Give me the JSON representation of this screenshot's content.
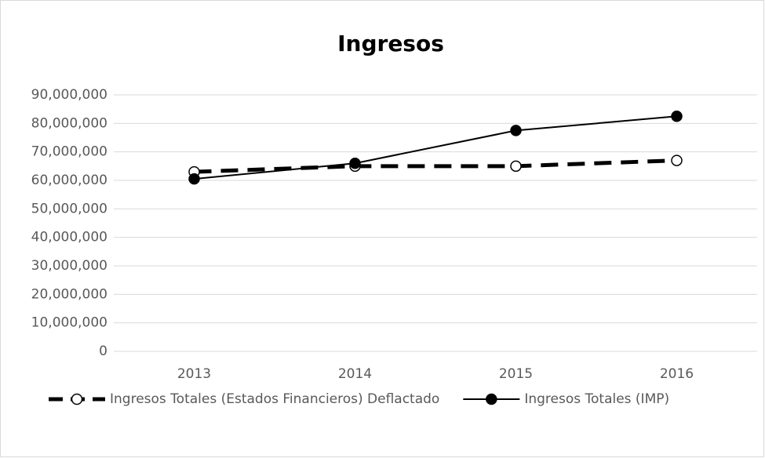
{
  "chart_data": {
    "type": "line",
    "title": "Ingresos",
    "categories": [
      "2013",
      "2014",
      "2015",
      "2016"
    ],
    "series": [
      {
        "name": "Ingresos Totales (Estados Financieros) Deflactado",
        "color": "#000000",
        "line_style": "dashed",
        "marker": "open",
        "values": [
          63000000,
          65000000,
          65000000,
          67000000
        ]
      },
      {
        "name": "Ingresos Totales (IMP)",
        "color": "#000000",
        "line_style": "solid",
        "marker": "filled",
        "values": [
          60500000,
          66000000,
          77500000,
          82500000
        ]
      }
    ],
    "ylim": [
      0,
      90000000
    ],
    "yticks": [
      0,
      {
        "value": 10000000,
        "label": "10,000,000"
      },
      {
        "value": 20000000,
        "label": "20,000,000"
      },
      {
        "value": 30000000,
        "label": "30,000,000"
      },
      {
        "value": 40000000,
        "label": "40,000,000"
      },
      {
        "value": 50000000,
        "label": "50,000,000"
      },
      {
        "value": 60000000,
        "label": "60,000,000"
      },
      {
        "value": 70000000,
        "label": "70,000,000"
      },
      {
        "value": 80000000,
        "label": "80,000,000"
      },
      {
        "value": 90000000,
        "label": "90,000,000"
      }
    ],
    "grid": true,
    "legend": "bottom"
  }
}
